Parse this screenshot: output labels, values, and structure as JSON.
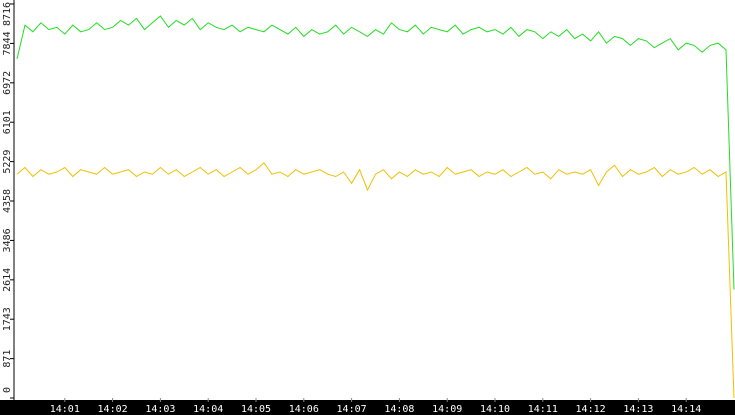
{
  "chart_data": {
    "type": "line",
    "categories": [
      null,
      null,
      null,
      null,
      null,
      null,
      "14:01",
      null,
      null,
      null,
      null,
      null,
      "14:02",
      null,
      null,
      null,
      null,
      null,
      "14:03",
      null,
      null,
      null,
      null,
      null,
      "14:04",
      null,
      null,
      null,
      null,
      null,
      "14:05",
      null,
      null,
      null,
      null,
      null,
      "14:06",
      null,
      null,
      null,
      null,
      null,
      "14:07",
      null,
      null,
      null,
      null,
      null,
      "14:08",
      null,
      null,
      null,
      null,
      null,
      "14:09",
      null,
      null,
      null,
      null,
      null,
      "14:10",
      null,
      null,
      null,
      null,
      null,
      "14:11",
      null,
      null,
      null,
      null,
      null,
      "14:12",
      null,
      null,
      null,
      null,
      null,
      "14:13",
      null,
      null,
      null,
      null,
      null,
      "14:14",
      null,
      null,
      null,
      null,
      null,
      null
    ],
    "series": [
      {
        "color": "#22dd22",
        "values": [
          7500,
          8250,
          8100,
          8300,
          8150,
          8200,
          8050,
          8250,
          8100,
          8150,
          8300,
          8150,
          8200,
          8350,
          8250,
          8400,
          8150,
          8300,
          8450,
          8200,
          8350,
          8250,
          8400,
          8150,
          8300,
          8200,
          8150,
          8250,
          8100,
          8200,
          8150,
          8100,
          8250,
          8150,
          8050,
          8200,
          8000,
          8150,
          8050,
          8100,
          8250,
          8050,
          8200,
          8100,
          8000,
          8150,
          8050,
          8300,
          8150,
          8100,
          8250,
          8050,
          8200,
          8150,
          8100,
          8250,
          8050,
          8150,
          8200,
          8100,
          8150,
          8050,
          8200,
          8000,
          8150,
          8100,
          7950,
          8100,
          8000,
          8150,
          7950,
          8050,
          7900,
          8100,
          7850,
          8000,
          7950,
          7800,
          7950,
          7900,
          7750,
          7850,
          7950,
          7700,
          7850,
          7800,
          7650,
          7800,
          7850,
          7700,
          2400
        ]
      },
      {
        "color": "#f0c000",
        "values": [
          4950,
          5100,
          4900,
          5050,
          4950,
          5000,
          5100,
          4900,
          5050,
          5000,
          4950,
          5100,
          4950,
          5000,
          5050,
          4900,
          5000,
          4950,
          5100,
          4950,
          5050,
          4900,
          5000,
          5100,
          4950,
          5050,
          4900,
          5000,
          5100,
          4950,
          5050,
          5200,
          4950,
          5000,
          4900,
          5050,
          4950,
          5000,
          5050,
          4950,
          4900,
          5000,
          4750,
          5050,
          4600,
          4950,
          5050,
          4850,
          5000,
          4900,
          5050,
          4950,
          5000,
          4900,
          5100,
          4950,
          5000,
          5050,
          4900,
          5000,
          4950,
          5050,
          4900,
          5000,
          5100,
          4950,
          5000,
          4850,
          5050,
          4950,
          5000,
          4950,
          5050,
          4700,
          5000,
          5150,
          4900,
          5050,
          4950,
          5000,
          5100,
          4900,
          5050,
          4950,
          5000,
          5100,
          4950,
          5050,
          4900,
          5000,
          0
        ]
      }
    ],
    "ylim": [
      0,
      8716
    ],
    "yticks": [
      0,
      871,
      1743,
      2614,
      3486,
      4358,
      5229,
      6101,
      6972,
      7844,
      8716
    ]
  }
}
